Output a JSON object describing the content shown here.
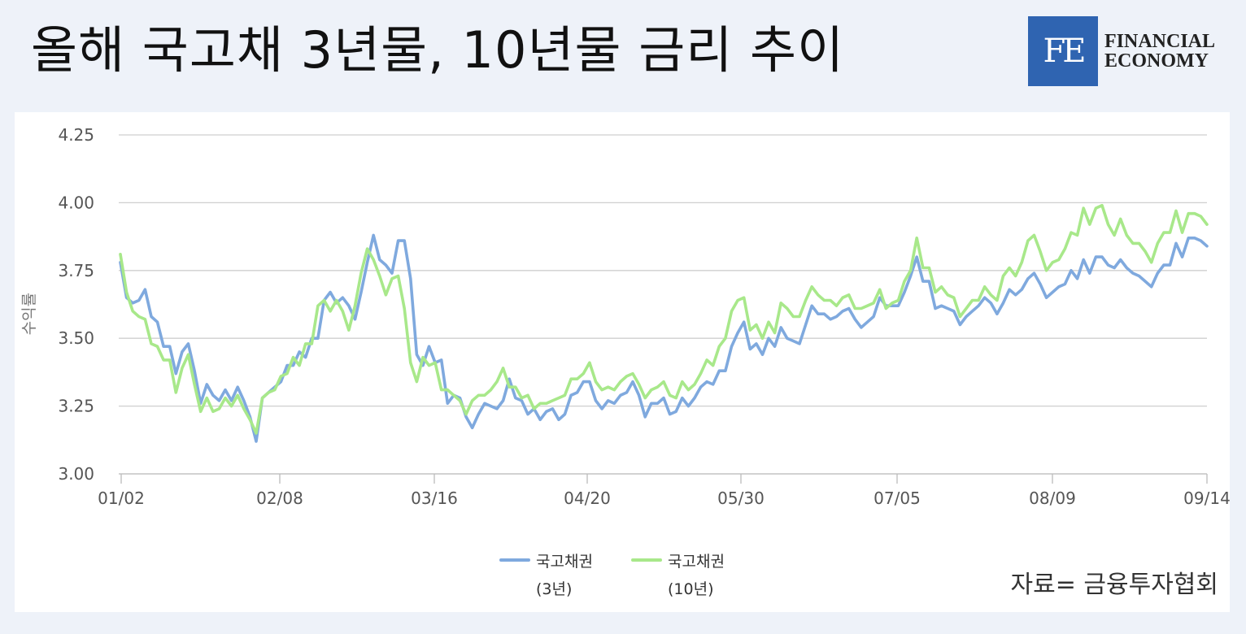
{
  "header": {
    "title": "올해 국고채 3년물, 10년물 금리 추이",
    "logo_mark": "FE",
    "logo_line1": "FINANCIAL",
    "logo_line2": "ECONOMY"
  },
  "source": "자료= 금융투자협회",
  "chart_data": {
    "type": "line",
    "title": "",
    "xlabel": "",
    "ylabel": "수익률",
    "ylim": [
      3.0,
      4.25
    ],
    "yticks": [
      "3.00",
      "3.25",
      "3.50",
      "3.75",
      "4.00",
      "4.25"
    ],
    "xticks": [
      "01/02",
      "02/08",
      "03/16",
      "04/20",
      "05/30",
      "07/05",
      "08/09",
      "09/14"
    ],
    "grid": true,
    "legend_position": "bottom-center",
    "series": [
      {
        "name": "국고채권 (3년)",
        "legend_line1": "국고채권",
        "legend_line2": "(3년)",
        "color": "#7fa9de",
        "values": [
          3.78,
          3.65,
          3.63,
          3.64,
          3.68,
          3.58,
          3.56,
          3.47,
          3.47,
          3.37,
          3.45,
          3.48,
          3.38,
          3.26,
          3.33,
          3.29,
          3.27,
          3.31,
          3.27,
          3.32,
          3.27,
          3.21,
          3.12,
          3.28,
          3.3,
          3.32,
          3.34,
          3.4,
          3.4,
          3.45,
          3.43,
          3.5,
          3.5,
          3.64,
          3.67,
          3.63,
          3.65,
          3.62,
          3.57,
          3.67,
          3.78,
          3.88,
          3.79,
          3.77,
          3.74,
          3.86,
          3.86,
          3.72,
          3.44,
          3.4,
          3.47,
          3.41,
          3.42,
          3.26,
          3.29,
          3.28,
          3.21,
          3.17,
          3.22,
          3.26,
          3.25,
          3.24,
          3.27,
          3.35,
          3.28,
          3.27,
          3.22,
          3.24,
          3.2,
          3.23,
          3.24,
          3.2,
          3.22,
          3.29,
          3.3,
          3.34,
          3.34,
          3.27,
          3.24,
          3.27,
          3.26,
          3.29,
          3.3,
          3.34,
          3.29,
          3.21,
          3.26,
          3.26,
          3.28,
          3.22,
          3.23,
          3.28,
          3.25,
          3.28,
          3.32,
          3.34,
          3.33,
          3.38,
          3.38,
          3.47,
          3.52,
          3.56,
          3.46,
          3.48,
          3.44,
          3.5,
          3.47,
          3.54,
          3.5,
          3.49,
          3.48,
          3.55,
          3.62,
          3.59,
          3.59,
          3.57,
          3.58,
          3.6,
          3.61,
          3.57,
          3.54,
          3.56,
          3.58,
          3.65,
          3.62,
          3.62,
          3.62,
          3.67,
          3.73,
          3.8,
          3.71,
          3.71,
          3.61,
          3.62,
          3.61,
          3.6,
          3.55,
          3.58,
          3.6,
          3.62,
          3.65,
          3.63,
          3.59,
          3.63,
          3.68,
          3.66,
          3.68,
          3.72,
          3.74,
          3.7,
          3.65,
          3.67,
          3.69,
          3.7,
          3.75,
          3.72,
          3.79,
          3.74,
          3.8,
          3.8,
          3.77,
          3.76,
          3.79,
          3.76,
          3.74,
          3.73,
          3.71,
          3.69,
          3.74,
          3.77,
          3.77,
          3.85,
          3.8,
          3.87,
          3.87,
          3.86,
          3.84
        ]
      },
      {
        "name": "국고채권 (10년)",
        "legend_line1": "국고채권",
        "legend_line2": "(10년)",
        "color": "#a8e88a",
        "values": [
          3.81,
          3.67,
          3.6,
          3.58,
          3.57,
          3.48,
          3.47,
          3.42,
          3.42,
          3.3,
          3.39,
          3.44,
          3.33,
          3.23,
          3.28,
          3.23,
          3.24,
          3.28,
          3.25,
          3.29,
          3.24,
          3.2,
          3.15,
          3.28,
          3.3,
          3.31,
          3.36,
          3.37,
          3.43,
          3.4,
          3.48,
          3.48,
          3.62,
          3.64,
          3.6,
          3.64,
          3.6,
          3.53,
          3.62,
          3.74,
          3.83,
          3.79,
          3.73,
          3.66,
          3.72,
          3.73,
          3.61,
          3.41,
          3.34,
          3.43,
          3.4,
          3.41,
          3.31,
          3.31,
          3.29,
          3.27,
          3.22,
          3.27,
          3.29,
          3.29,
          3.31,
          3.34,
          3.39,
          3.32,
          3.32,
          3.28,
          3.29,
          3.24,
          3.26,
          3.26,
          3.27,
          3.28,
          3.29,
          3.35,
          3.35,
          3.37,
          3.41,
          3.34,
          3.31,
          3.32,
          3.31,
          3.34,
          3.36,
          3.37,
          3.33,
          3.28,
          3.31,
          3.32,
          3.34,
          3.29,
          3.28,
          3.34,
          3.31,
          3.33,
          3.37,
          3.42,
          3.4,
          3.47,
          3.5,
          3.6,
          3.64,
          3.65,
          3.53,
          3.55,
          3.5,
          3.56,
          3.52,
          3.63,
          3.61,
          3.58,
          3.58,
          3.64,
          3.69,
          3.66,
          3.64,
          3.64,
          3.62,
          3.65,
          3.66,
          3.61,
          3.61,
          3.62,
          3.63,
          3.68,
          3.61,
          3.63,
          3.64,
          3.71,
          3.75,
          3.87,
          3.76,
          3.76,
          3.67,
          3.69,
          3.66,
          3.65,
          3.58,
          3.61,
          3.64,
          3.64,
          3.69,
          3.66,
          3.64,
          3.73,
          3.76,
          3.73,
          3.78,
          3.86,
          3.88,
          3.82,
          3.75,
          3.78,
          3.79,
          3.83,
          3.89,
          3.88,
          3.98,
          3.92,
          3.98,
          3.99,
          3.92,
          3.88,
          3.94,
          3.88,
          3.85,
          3.85,
          3.82,
          3.78,
          3.85,
          3.89,
          3.89,
          3.97,
          3.89,
          3.96,
          3.96,
          3.95,
          3.92
        ]
      }
    ]
  }
}
